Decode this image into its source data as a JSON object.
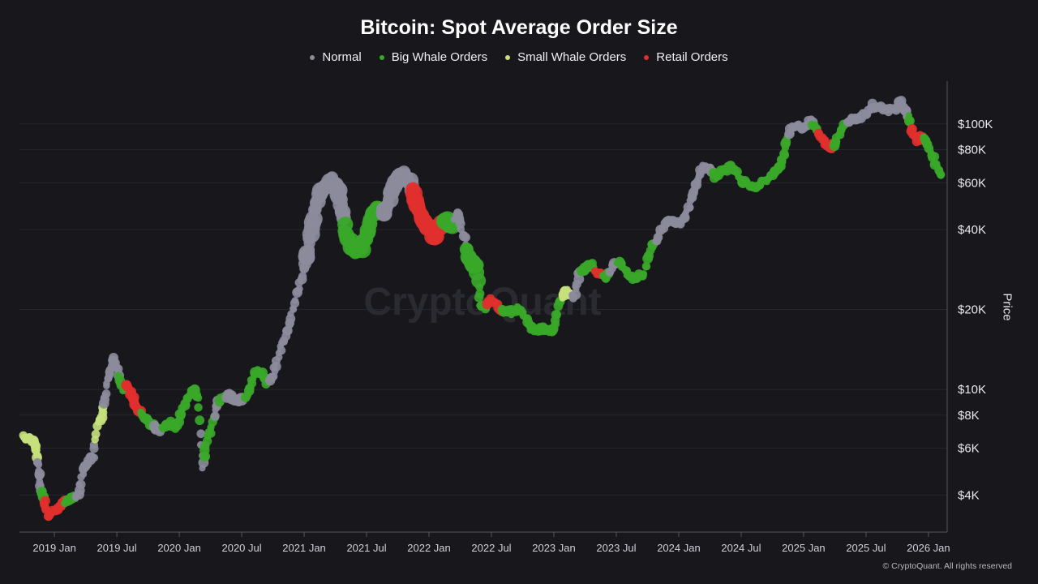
{
  "chart_data": {
    "type": "scatter",
    "title": "Bitcoin: Spot Average Order Size",
    "xlabel": "",
    "ylabel": "Price",
    "y_scale": "log",
    "y_ticks": [
      {
        "value": 4000,
        "label": "$4K"
      },
      {
        "value": 6000,
        "label": "$6K"
      },
      {
        "value": 8000,
        "label": "$8K"
      },
      {
        "value": 10000,
        "label": "$10K"
      },
      {
        "value": 20000,
        "label": "$20K"
      },
      {
        "value": 40000,
        "label": "$40K"
      },
      {
        "value": 60000,
        "label": "$60K"
      },
      {
        "value": 80000,
        "label": "$80K"
      },
      {
        "value": 100000,
        "label": "$100K"
      }
    ],
    "x_ticks": [
      {
        "value": 2019.0,
        "label": "2019 Jan"
      },
      {
        "value": 2019.5,
        "label": "2019 Jul"
      },
      {
        "value": 2020.0,
        "label": "2020 Jan"
      },
      {
        "value": 2020.5,
        "label": "2020 Jul"
      },
      {
        "value": 2021.0,
        "label": "2021 Jan"
      },
      {
        "value": 2021.5,
        "label": "2021 Jul"
      },
      {
        "value": 2022.0,
        "label": "2022 Jan"
      },
      {
        "value": 2022.5,
        "label": "2022 Jul"
      },
      {
        "value": 2023.0,
        "label": "2023 Jan"
      },
      {
        "value": 2023.5,
        "label": "2023 Jul"
      },
      {
        "value": 2024.0,
        "label": "2024 Jan"
      },
      {
        "value": 2024.5,
        "label": "2024 Jul"
      },
      {
        "value": 2025.0,
        "label": "2025 Jan"
      },
      {
        "value": 2025.5,
        "label": "2025 Jul"
      },
      {
        "value": 2026.0,
        "label": "2026 Jan"
      }
    ],
    "xlim": [
      2018.72,
      2026.15
    ],
    "ylim": [
      2900,
      145000
    ],
    "watermark": "CryptoQuant",
    "series": [
      {
        "name": "Normal",
        "key": "normal",
        "color": "#8c8b9c"
      },
      {
        "name": "Big Whale Orders",
        "key": "big",
        "color": "#3aa829"
      },
      {
        "name": "Small Whale Orders",
        "key": "small",
        "color": "#c6e07c"
      },
      {
        "name": "Retail Orders",
        "key": "retail",
        "color": "#e0302d"
      }
    ],
    "price_path": [
      [
        2018.75,
        6600,
        "small"
      ],
      [
        2018.8,
        6500,
        "small"
      ],
      [
        2018.84,
        6300,
        "small"
      ],
      [
        2018.86,
        5800,
        "small"
      ],
      [
        2018.87,
        5000,
        "normal"
      ],
      [
        2018.89,
        4300,
        "normal"
      ],
      [
        2018.91,
        3900,
        "big"
      ],
      [
        2018.93,
        3600,
        "retail"
      ],
      [
        2018.96,
        3350,
        "retail"
      ],
      [
        2018.99,
        3500,
        "retail"
      ],
      [
        2019.03,
        3600,
        "retail"
      ],
      [
        2019.07,
        3700,
        "retail"
      ],
      [
        2019.11,
        3800,
        "big"
      ],
      [
        2019.15,
        3900,
        "big"
      ],
      [
        2019.19,
        4000,
        "normal"
      ],
      [
        2019.23,
        5000,
        "normal"
      ],
      [
        2019.27,
        5300,
        "normal"
      ],
      [
        2019.31,
        5600,
        "normal"
      ],
      [
        2019.35,
        7500,
        "small"
      ],
      [
        2019.38,
        8000,
        "small"
      ],
      [
        2019.41,
        9500,
        "normal"
      ],
      [
        2019.44,
        11500,
        "normal"
      ],
      [
        2019.47,
        13000,
        "normal"
      ],
      [
        2019.5,
        12000,
        "normal"
      ],
      [
        2019.53,
        10500,
        "big"
      ],
      [
        2019.56,
        10000,
        "big"
      ],
      [
        2019.59,
        10200,
        "retail"
      ],
      [
        2019.62,
        9500,
        "retail"
      ],
      [
        2019.65,
        8700,
        "retail"
      ],
      [
        2019.68,
        8200,
        "retail"
      ],
      [
        2019.71,
        8000,
        "big"
      ],
      [
        2019.74,
        7600,
        "big"
      ],
      [
        2019.78,
        7300,
        "big"
      ],
      [
        2019.83,
        7000,
        "normal"
      ],
      [
        2019.88,
        7200,
        "big"
      ],
      [
        2019.93,
        7500,
        "big"
      ],
      [
        2019.97,
        7200,
        "big"
      ],
      [
        2020.02,
        8200,
        "big"
      ],
      [
        2020.07,
        9400,
        "big"
      ],
      [
        2020.12,
        10100,
        "big"
      ],
      [
        2020.15,
        9300,
        "big"
      ],
      [
        2020.19,
        5000,
        "normal"
      ],
      [
        2020.22,
        6500,
        "big"
      ],
      [
        2020.26,
        7200,
        "big"
      ],
      [
        2020.3,
        8800,
        "normal"
      ],
      [
        2020.35,
        9400,
        "big"
      ],
      [
        2020.4,
        9500,
        "normal"
      ],
      [
        2020.45,
        9200,
        "normal"
      ],
      [
        2020.5,
        9100,
        "normal"
      ],
      [
        2020.55,
        9700,
        "big"
      ],
      [
        2020.6,
        11400,
        "big"
      ],
      [
        2020.65,
        11700,
        "big"
      ],
      [
        2020.7,
        10600,
        "big"
      ],
      [
        2020.75,
        11200,
        "normal"
      ],
      [
        2020.8,
        13500,
        "normal"
      ],
      [
        2020.85,
        16000,
        "normal"
      ],
      [
        2020.9,
        19000,
        "normal"
      ],
      [
        2020.95,
        23500,
        "normal"
      ],
      [
        2021.0,
        29000,
        "normal"
      ],
      [
        2021.04,
        35000,
        "normal"
      ],
      [
        2021.08,
        47000,
        "normal"
      ],
      [
        2021.13,
        55000,
        "normal"
      ],
      [
        2021.18,
        58000,
        "normal"
      ],
      [
        2021.23,
        62000,
        "normal"
      ],
      [
        2021.27,
        55000,
        "normal"
      ],
      [
        2021.31,
        47000,
        "normal"
      ],
      [
        2021.34,
        37000,
        "big"
      ],
      [
        2021.38,
        35000,
        "big"
      ],
      [
        2021.42,
        33000,
        "big"
      ],
      [
        2021.46,
        34000,
        "big"
      ],
      [
        2021.5,
        38000,
        "big"
      ],
      [
        2021.55,
        46000,
        "big"
      ],
      [
        2021.6,
        48000,
        "big"
      ],
      [
        2021.65,
        46000,
        "normal"
      ],
      [
        2021.7,
        55000,
        "normal"
      ],
      [
        2021.75,
        62000,
        "normal"
      ],
      [
        2021.8,
        65000,
        "normal"
      ],
      [
        2021.85,
        60000,
        "normal"
      ],
      [
        2021.88,
        52000,
        "retail"
      ],
      [
        2021.92,
        47000,
        "retail"
      ],
      [
        2021.96,
        43000,
        "retail"
      ],
      [
        2022.0,
        41000,
        "retail"
      ],
      [
        2022.04,
        37000,
        "retail"
      ],
      [
        2022.09,
        41000,
        "retail"
      ],
      [
        2022.14,
        44000,
        "big"
      ],
      [
        2022.18,
        42000,
        "big"
      ],
      [
        2022.23,
        46000,
        "normal"
      ],
      [
        2022.28,
        38000,
        "normal"
      ],
      [
        2022.33,
        31000,
        "big"
      ],
      [
        2022.38,
        29000,
        "big"
      ],
      [
        2022.41,
        21000,
        "big"
      ],
      [
        2022.45,
        20000,
        "big"
      ],
      [
        2022.49,
        22000,
        "retail"
      ],
      [
        2022.53,
        21000,
        "retail"
      ],
      [
        2022.57,
        20000,
        "retail"
      ],
      [
        2022.61,
        19800,
        "big"
      ],
      [
        2022.66,
        19500,
        "big"
      ],
      [
        2022.71,
        20000,
        "big"
      ],
      [
        2022.76,
        19300,
        "big"
      ],
      [
        2022.82,
        17000,
        "big"
      ],
      [
        2022.87,
        16800,
        "big"
      ],
      [
        2022.92,
        16900,
        "big"
      ],
      [
        2022.96,
        16600,
        "big"
      ],
      [
        2023.0,
        17000,
        "big"
      ],
      [
        2023.04,
        21000,
        "big"
      ],
      [
        2023.08,
        23000,
        "small"
      ],
      [
        2023.12,
        23500,
        "small"
      ],
      [
        2023.16,
        22000,
        "normal"
      ],
      [
        2023.2,
        27000,
        "normal"
      ],
      [
        2023.25,
        28500,
        "big"
      ],
      [
        2023.3,
        29500,
        "big"
      ],
      [
        2023.36,
        27000,
        "retail"
      ],
      [
        2023.42,
        26500,
        "big"
      ],
      [
        2023.48,
        30000,
        "normal"
      ],
      [
        2023.54,
        29500,
        "big"
      ],
      [
        2023.6,
        27000,
        "big"
      ],
      [
        2023.66,
        26000,
        "big"
      ],
      [
        2023.72,
        27500,
        "big"
      ],
      [
        2023.78,
        34500,
        "big"
      ],
      [
        2023.83,
        37000,
        "normal"
      ],
      [
        2023.89,
        42000,
        "normal"
      ],
      [
        2023.95,
        43000,
        "normal"
      ],
      [
        2024.0,
        42500,
        "normal"
      ],
      [
        2024.05,
        44000,
        "normal"
      ],
      [
        2024.1,
        52000,
        "normal"
      ],
      [
        2024.15,
        62000,
        "normal"
      ],
      [
        2024.2,
        70000,
        "normal"
      ],
      [
        2024.25,
        67000,
        "normal"
      ],
      [
        2024.3,
        63000,
        "big"
      ],
      [
        2024.35,
        67000,
        "big"
      ],
      [
        2024.42,
        69000,
        "big"
      ],
      [
        2024.48,
        63000,
        "big"
      ],
      [
        2024.54,
        60000,
        "big"
      ],
      [
        2024.6,
        58000,
        "big"
      ],
      [
        2024.66,
        59000,
        "big"
      ],
      [
        2024.72,
        63000,
        "big"
      ],
      [
        2024.78,
        67000,
        "big"
      ],
      [
        2024.83,
        72000,
        "big"
      ],
      [
        2024.86,
        85000,
        "big"
      ],
      [
        2024.9,
        95000,
        "normal"
      ],
      [
        2024.95,
        99000,
        "normal"
      ],
      [
        2025.0,
        96000,
        "normal"
      ],
      [
        2025.05,
        103000,
        "normal"
      ],
      [
        2025.1,
        97000,
        "big"
      ],
      [
        2025.14,
        89000,
        "retail"
      ],
      [
        2025.18,
        84000,
        "retail"
      ],
      [
        2025.22,
        82000,
        "retail"
      ],
      [
        2025.26,
        87000,
        "big"
      ],
      [
        2025.31,
        96000,
        "big"
      ],
      [
        2025.37,
        104000,
        "normal"
      ],
      [
        2025.43,
        106000,
        "normal"
      ],
      [
        2025.5,
        108000,
        "normal"
      ],
      [
        2025.56,
        117000,
        "normal"
      ],
      [
        2025.62,
        114000,
        "normal"
      ],
      [
        2025.68,
        112000,
        "normal"
      ],
      [
        2025.74,
        115000,
        "normal"
      ],
      [
        2025.78,
        120000,
        "normal"
      ],
      [
        2025.82,
        110000,
        "normal"
      ],
      [
        2025.85,
        101000,
        "big"
      ],
      [
        2025.87,
        92000,
        "retail"
      ],
      [
        2025.9,
        87000,
        "retail"
      ],
      [
        2025.94,
        90000,
        "retail"
      ],
      [
        2025.98,
        86000,
        "big"
      ],
      [
        2026.03,
        77000,
        "big"
      ],
      [
        2026.07,
        68000,
        "big"
      ],
      [
        2026.1,
        64000,
        "big"
      ]
    ]
  },
  "copyright": "© CryptoQuant. All rights reserved"
}
